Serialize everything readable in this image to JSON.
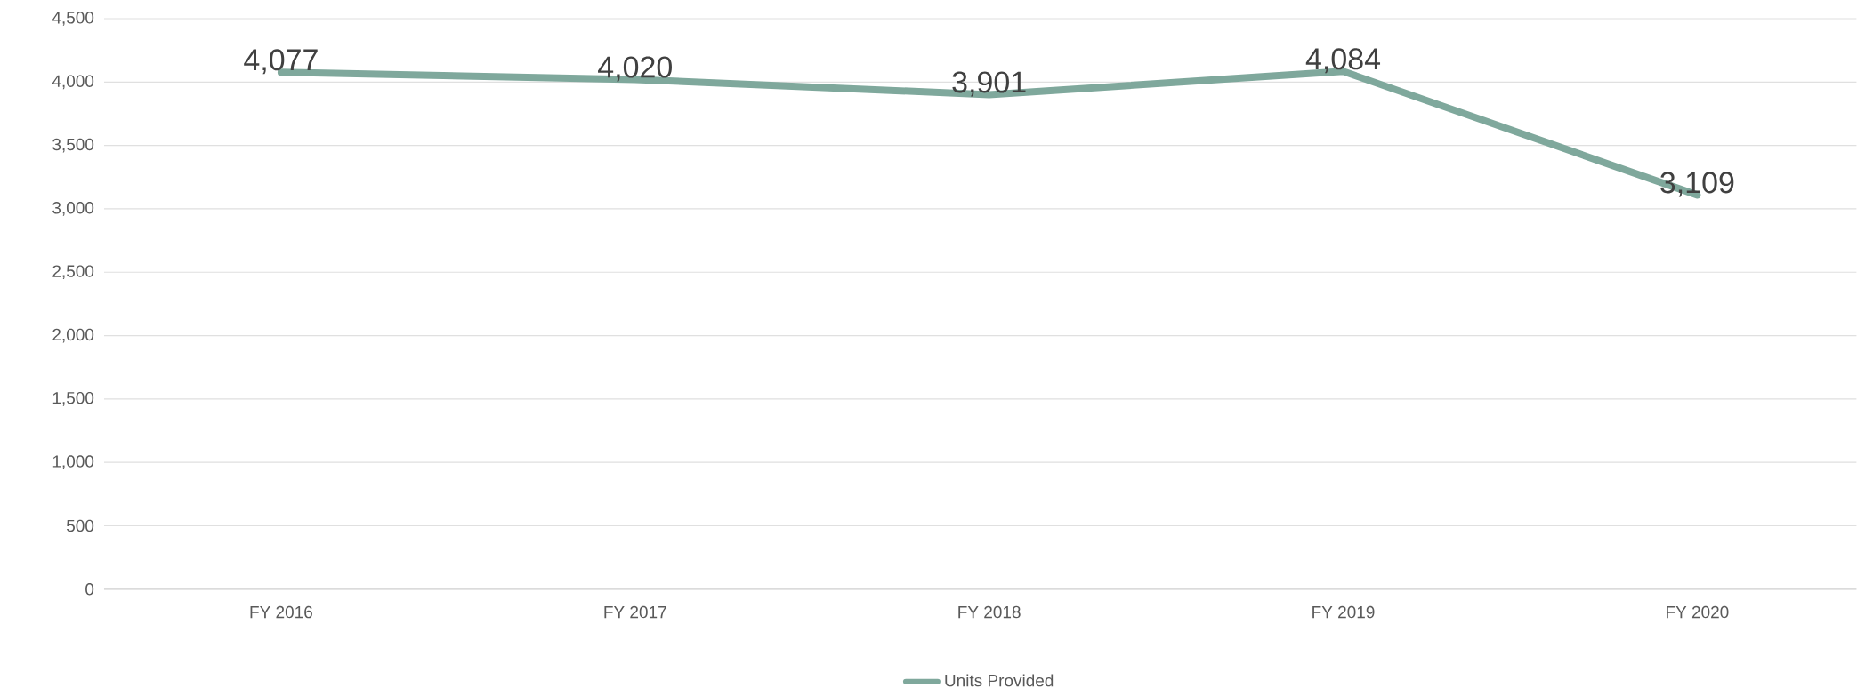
{
  "chart_data": {
    "type": "line",
    "categories": [
      "FY 2016",
      "FY 2017",
      "FY 2018",
      "FY 2019",
      "FY 2020"
    ],
    "series": [
      {
        "name": "Units Provided",
        "color": "#7fa89c",
        "values": [
          4077,
          4020,
          3901,
          4084,
          3109
        ],
        "value_labels": [
          "4,077",
          "4,020",
          "3,901",
          "4,084",
          "3,109"
        ]
      }
    ],
    "ylim": [
      0,
      4500
    ],
    "yticks": [
      {
        "value": 0,
        "label": "0"
      },
      {
        "value": 500,
        "label": "500"
      },
      {
        "value": 1000,
        "label": "1,000"
      },
      {
        "value": 1500,
        "label": "1,500"
      },
      {
        "value": 2000,
        "label": "2,000"
      },
      {
        "value": 2500,
        "label": "2,500"
      },
      {
        "value": 3000,
        "label": "3,000"
      },
      {
        "value": 3500,
        "label": "3,500"
      },
      {
        "value": 4000,
        "label": "4,000"
      },
      {
        "value": 4500,
        "label": "4,500"
      }
    ],
    "grid": "y",
    "legend": "bottom"
  }
}
